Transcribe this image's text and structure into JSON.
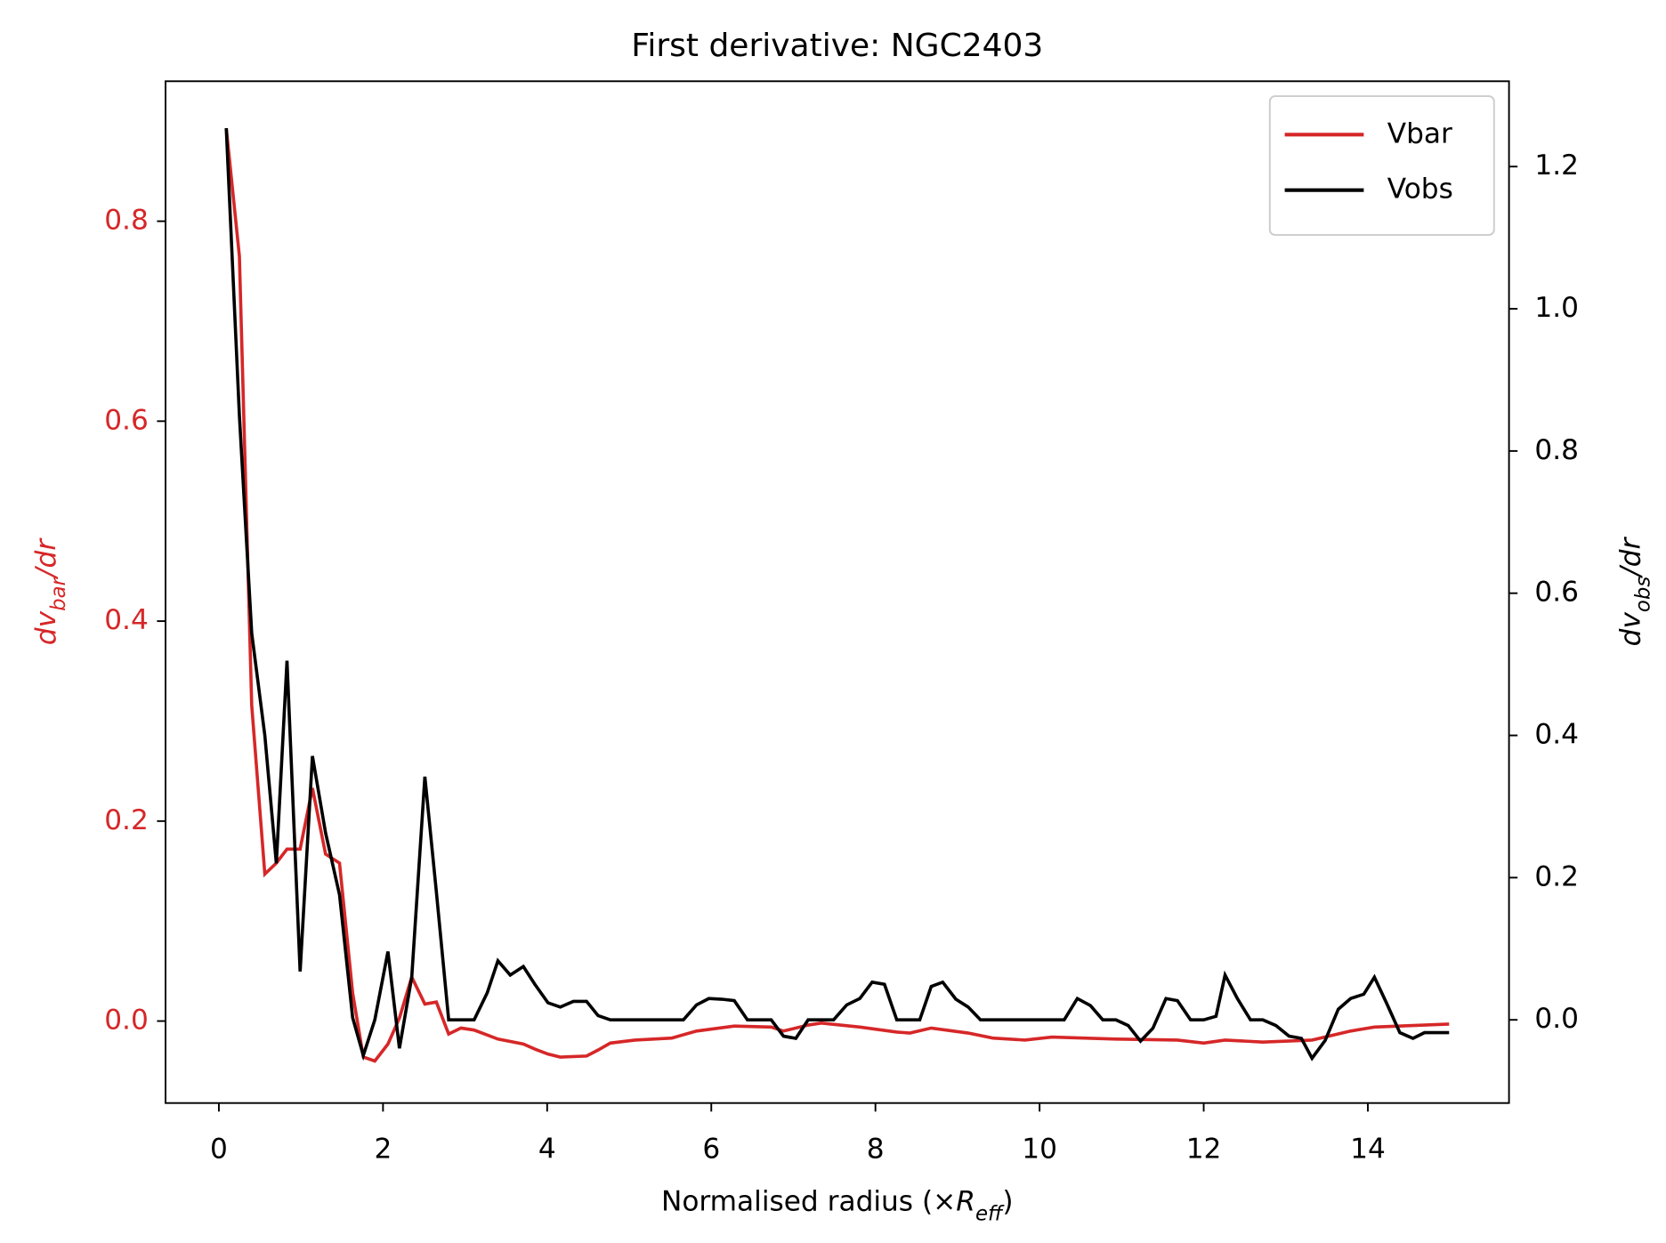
{
  "chart_data": {
    "type": "line",
    "title": "First derivative: NGC2403",
    "x_label": [
      "Normalised radius (×",
      "R",
      "eff",
      ")"
    ],
    "y_label": [
      "dv",
      "bar",
      "/dr"
    ],
    "y2_label": [
      "dv",
      "obs",
      "/dr"
    ],
    "xlim": [
      -0.65,
      15.72
    ],
    "xticks": [
      0,
      2,
      4,
      6,
      8,
      10,
      12,
      14
    ],
    "ylim": [
      -0.082,
      0.94
    ],
    "yticks": [
      {
        "value": 0,
        "label": "0.0"
      },
      0.2,
      0.4,
      0.6,
      0.8
    ],
    "y2lim": [
      -0.117,
      1.32
    ],
    "y2ticks": [
      {
        "value": 0,
        "label": "0.0"
      },
      0.2,
      0.4,
      0.6,
      0.8,
      {
        "value": 1,
        "label": "1.0"
      },
      1.2
    ],
    "y_label_color": "#d62728",
    "legend": "upper right",
    "series": [
      {
        "name": "Vbar",
        "color": "#d62728",
        "x": [
          0.09,
          0.25,
          0.4,
          0.56,
          0.7,
          0.83,
          0.99,
          1.14,
          1.3,
          1.47,
          1.63,
          1.76,
          1.9,
          2.06,
          2.2,
          2.35,
          2.51,
          2.65,
          2.8,
          2.95,
          3.11,
          3.4,
          3.71,
          3.85,
          4.01,
          4.16,
          4.48,
          4.62,
          4.77,
          5.07,
          5.52,
          5.82,
          6.28,
          6.73,
          6.88,
          7.18,
          7.34,
          7.81,
          8.26,
          8.42,
          8.68,
          9.13,
          9.43,
          9.82,
          10.15,
          10.93,
          11.68,
          12.0,
          12.26,
          12.72,
          13.32,
          13.79,
          14.08,
          14.99
        ],
        "values": [
          0.893,
          0.765,
          0.316,
          0.147,
          0.158,
          0.172,
          0.172,
          0.233,
          0.167,
          0.158,
          0.028,
          -0.036,
          -0.04,
          -0.023,
          0.003,
          0.044,
          0.017,
          0.019,
          -0.013,
          -0.007,
          -0.009,
          -0.018,
          -0.023,
          -0.028,
          -0.033,
          -0.036,
          -0.035,
          -0.029,
          -0.022,
          -0.019,
          -0.017,
          -0.01,
          -0.005,
          -0.006,
          -0.01,
          -0.004,
          -0.002,
          -0.006,
          -0.011,
          -0.012,
          -0.007,
          -0.012,
          -0.017,
          -0.019,
          -0.016,
          -0.018,
          -0.019,
          -0.022,
          -0.019,
          -0.021,
          -0.019,
          -0.01,
          -0.006,
          -0.003
        ]
      },
      {
        "name": "Vobs",
        "color": "#000000",
        "axis": "y2",
        "x": [
          0.09,
          0.25,
          0.4,
          0.56,
          0.7,
          0.83,
          0.99,
          1.14,
          1.3,
          1.47,
          1.63,
          1.76,
          1.9,
          2.06,
          2.2,
          2.35,
          2.51,
          2.65,
          2.8,
          3.11,
          3.27,
          3.4,
          3.55,
          3.71,
          3.85,
          4.01,
          4.16,
          4.32,
          4.48,
          4.62,
          4.77,
          5.66,
          5.82,
          5.97,
          6.13,
          6.28,
          6.44,
          6.73,
          6.88,
          7.03,
          7.18,
          7.49,
          7.65,
          7.81,
          7.96,
          8.11,
          8.26,
          8.54,
          8.68,
          8.82,
          8.98,
          9.13,
          9.28,
          10.3,
          10.46,
          10.62,
          10.77,
          10.93,
          11.08,
          11.23,
          11.38,
          11.54,
          11.68,
          11.84,
          12.0,
          12.15,
          12.26,
          12.41,
          12.57,
          12.72,
          12.88,
          13.04,
          13.19,
          13.32,
          13.48,
          13.64,
          13.79,
          13.95,
          14.08,
          14.23,
          14.39,
          14.55,
          14.69,
          14.99
        ],
        "values": [
          1.254,
          0.85,
          0.544,
          0.4,
          0.22,
          0.505,
          0.068,
          0.371,
          0.263,
          0.176,
          0.003,
          -0.05,
          0,
          0.096,
          -0.04,
          0.06,
          0.342,
          0.18,
          0,
          0,
          0.038,
          0.083,
          0.063,
          0.075,
          0.05,
          0.024,
          0.018,
          0.026,
          0.026,
          0.006,
          0,
          0,
          0.021,
          0.03,
          0.029,
          0.027,
          0,
          0,
          -0.023,
          -0.026,
          0,
          0,
          0.021,
          0.03,
          0.053,
          0.05,
          0,
          0,
          0.047,
          0.053,
          0.029,
          0.018,
          0,
          0,
          0.03,
          0.02,
          0,
          0,
          -0.008,
          -0.03,
          -0.012,
          0.03,
          0.027,
          0,
          0,
          0.005,
          0.063,
          0.03,
          0,
          0,
          -0.008,
          -0.023,
          -0.026,
          -0.054,
          -0.029,
          0.015,
          0.03,
          0.036,
          0.06,
          0.023,
          -0.018,
          -0.026,
          -0.018,
          -0.018
        ]
      }
    ]
  }
}
